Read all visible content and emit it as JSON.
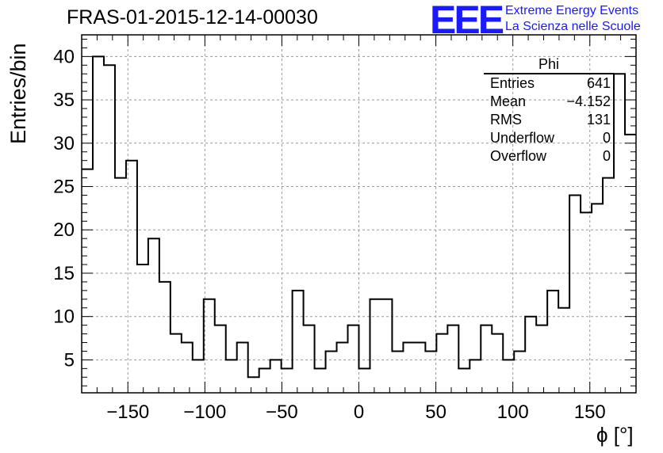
{
  "header": {
    "run_title": "FRAS-01-2015-12-14-00030",
    "logo_text": "EEE",
    "logo_line1": "Extreme Energy Events",
    "logo_line2": "La Scienza nelle Scuole"
  },
  "stats": {
    "title": "Phi",
    "rows": [
      {
        "label": "Entries",
        "value": "641"
      },
      {
        "label": "Mean",
        "value": "−4.152"
      },
      {
        "label": "RMS",
        "value": "131"
      },
      {
        "label": "Underflow",
        "value": "0"
      },
      {
        "label": "Overflow",
        "value": "0"
      }
    ]
  },
  "colors": {
    "logo": "#1a1aff",
    "grid": "#9a9a9a",
    "line": "#000000"
  },
  "chart_data": {
    "type": "histogram",
    "title": "FRAS-01-2015-12-14-00030",
    "xlabel": "ϕ [°]",
    "ylabel": "Entries/bin",
    "xlim": [
      -180,
      180
    ],
    "ylim": [
      1.2,
      42.5
    ],
    "grid": true,
    "bin_edges_start": -180,
    "bin_width": 7.2,
    "values": [
      27,
      40,
      39,
      26,
      28,
      16,
      19,
      14,
      8,
      7,
      5,
      12,
      9,
      5,
      7,
      3,
      4,
      5,
      4,
      13,
      9,
      4,
      6,
      7,
      9,
      4,
      12,
      12,
      6,
      7,
      7,
      6,
      8,
      9,
      4,
      5,
      9,
      8,
      5,
      6,
      10,
      9,
      13,
      11,
      24,
      22,
      23,
      26,
      38,
      31
    ],
    "x_ticks": [
      -150,
      -100,
      -50,
      0,
      50,
      100,
      150
    ],
    "x_tick_labels": [
      "−150",
      "−100",
      "−50",
      "0",
      "50",
      "100",
      "150"
    ],
    "y_ticks": [
      5,
      10,
      15,
      20,
      25,
      30,
      35,
      40
    ],
    "y_tick_labels": [
      "5",
      "10",
      "15",
      "20",
      "25",
      "30",
      "35",
      "40"
    ]
  }
}
